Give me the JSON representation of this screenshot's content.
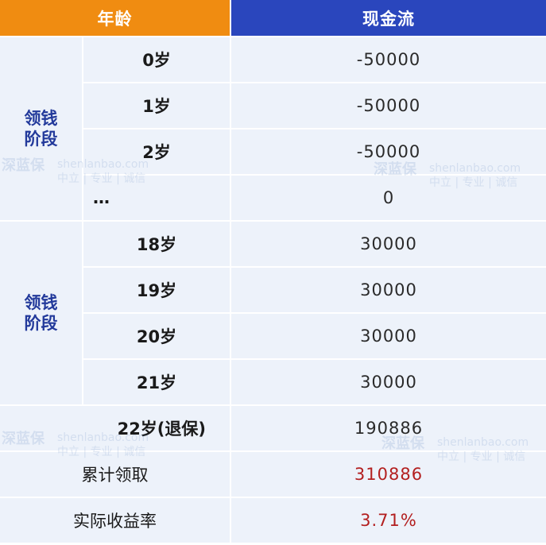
{
  "header": {
    "age": "年龄",
    "cashflow": "现金流"
  },
  "phase1_label": [
    "领钱",
    "阶段"
  ],
  "phase2_label": [
    "领钱",
    "阶段"
  ],
  "rows": [
    {
      "age": "0岁",
      "cash": "-50000"
    },
    {
      "age": "1岁",
      "cash": "-50000"
    },
    {
      "age": "2岁",
      "cash": "-50000"
    },
    {
      "age": "…",
      "cash": "0"
    },
    {
      "age": "18岁",
      "cash": "30000"
    },
    {
      "age": "19岁",
      "cash": "30000"
    },
    {
      "age": "20岁",
      "cash": "30000"
    },
    {
      "age": "21岁",
      "cash": "30000"
    },
    {
      "age": "22岁(退保)",
      "cash": "190886"
    }
  ],
  "summary": {
    "total_label": "累计领取",
    "total_value": "310886",
    "rate_label": "实际收益率",
    "rate_value": "3.71%"
  },
  "watermark": {
    "brand": "深蓝保",
    "domain": "shenlanbao.com",
    "slogan": "中立 | 专业 | 诚信"
  },
  "colors": {
    "age_header": "#f08c11",
    "cash_header": "#2a46bd",
    "phase_text": "#233a9b",
    "highlight": "#b31f1f"
  }
}
